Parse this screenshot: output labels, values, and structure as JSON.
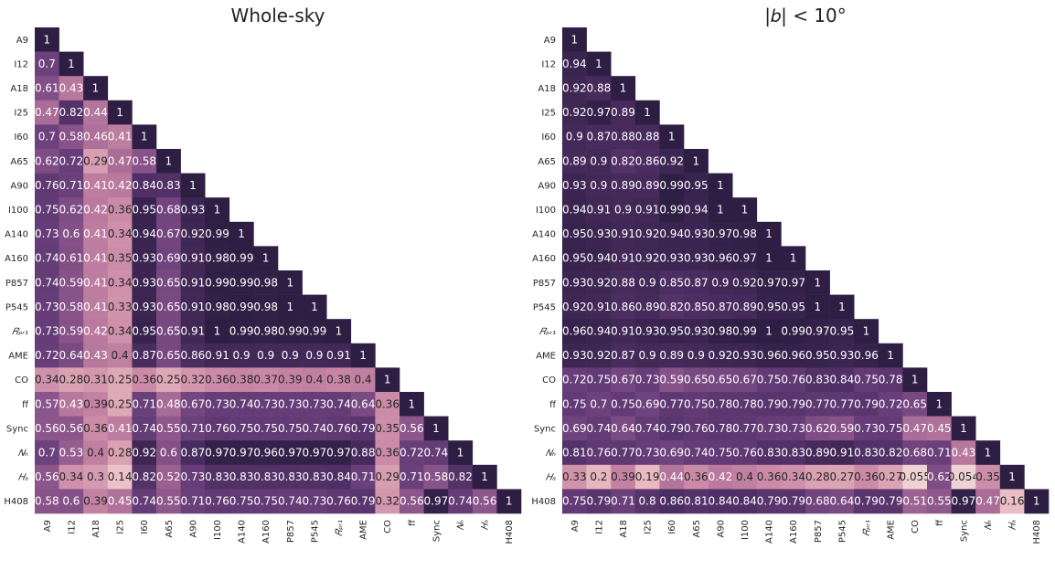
{
  "chart_data": [
    {
      "type": "heatmap",
      "title": "Whole-sky",
      "labels": [
        "A9",
        "I12",
        "A18",
        "I25",
        "I60",
        "A65",
        "A90",
        "I100",
        "A140",
        "A160",
        "P857",
        "P545",
        "R_PR1",
        "AME",
        "CO",
        "ff",
        "Sync",
        "N_H",
        "H_a",
        "H408"
      ],
      "tick_labels": [
        "A9",
        "I12",
        "A18",
        "I25",
        "I60",
        "A65",
        "A90",
        "I100",
        "A140",
        "A160",
        "P857",
        "P545",
        "𝑅ₚᵣ₁",
        "AME",
        "CO",
        "ff",
        "Sync",
        "𝑁ₕ",
        "𝐻ₐ",
        "H408"
      ],
      "triangle": "lower",
      "values": [
        [
          1
        ],
        [
          0.7,
          1
        ],
        [
          0.61,
          0.43,
          1
        ],
        [
          0.47,
          0.82,
          0.44,
          1
        ],
        [
          0.7,
          0.58,
          0.46,
          0.41,
          1
        ],
        [
          0.62,
          0.72,
          0.29,
          0.47,
          0.58,
          1
        ],
        [
          0.76,
          0.71,
          0.41,
          0.42,
          0.84,
          0.83,
          1
        ],
        [
          0.75,
          0.62,
          0.42,
          0.36,
          0.95,
          0.68,
          0.93,
          1
        ],
        [
          0.73,
          0.6,
          0.41,
          0.34,
          0.94,
          0.67,
          0.92,
          0.99,
          1
        ],
        [
          0.74,
          0.61,
          0.41,
          0.35,
          0.93,
          0.69,
          0.91,
          0.98,
          0.99,
          1
        ],
        [
          0.74,
          0.59,
          0.41,
          0.34,
          0.93,
          0.65,
          0.91,
          0.99,
          0.99,
          0.98,
          1
        ],
        [
          0.73,
          0.58,
          0.41,
          0.33,
          0.93,
          0.65,
          0.91,
          0.98,
          0.99,
          0.98,
          1,
          1
        ],
        [
          0.73,
          0.59,
          0.42,
          0.34,
          0.95,
          0.65,
          0.91,
          1,
          0.99,
          0.98,
          0.99,
          0.99,
          1
        ],
        [
          0.72,
          0.64,
          0.43,
          0.4,
          0.87,
          0.65,
          0.86,
          0.91,
          0.9,
          0.9,
          0.9,
          0.9,
          0.91,
          1
        ],
        [
          0.34,
          0.28,
          0.31,
          0.25,
          0.36,
          0.25,
          0.32,
          0.36,
          0.38,
          0.37,
          0.39,
          0.4,
          0.38,
          0.4,
          1
        ],
        [
          0.57,
          0.43,
          0.39,
          0.25,
          0.71,
          0.48,
          0.67,
          0.73,
          0.74,
          0.73,
          0.73,
          0.73,
          0.74,
          0.64,
          0.36,
          1
        ],
        [
          0.56,
          0.56,
          0.36,
          0.41,
          0.74,
          0.55,
          0.71,
          0.76,
          0.75,
          0.75,
          0.75,
          0.74,
          0.76,
          0.79,
          0.35,
          0.56,
          1
        ],
        [
          0.7,
          0.53,
          0.4,
          0.28,
          0.92,
          0.6,
          0.87,
          0.97,
          0.97,
          0.96,
          0.97,
          0.97,
          0.97,
          0.88,
          0.36,
          0.72,
          0.74,
          1
        ],
        [
          0.56,
          0.34,
          0.3,
          0.14,
          0.82,
          0.52,
          0.73,
          0.83,
          0.83,
          0.83,
          0.83,
          0.83,
          0.84,
          0.71,
          0.29,
          0.71,
          0.58,
          0.82,
          1
        ],
        [
          0.58,
          0.6,
          0.39,
          0.45,
          0.74,
          0.55,
          0.71,
          0.76,
          0.75,
          0.75,
          0.74,
          0.73,
          0.76,
          0.79,
          0.32,
          0.56,
          0.97,
          0.74,
          0.56,
          1
        ]
      ]
    },
    {
      "type": "heatmap",
      "title": "|𝑏| < 10°",
      "labels": [
        "A9",
        "I12",
        "A18",
        "I25",
        "I60",
        "A65",
        "A90",
        "I100",
        "A140",
        "A160",
        "P857",
        "P545",
        "R_PR1",
        "AME",
        "CO",
        "ff",
        "Sync",
        "N_H",
        "H_a",
        "H408"
      ],
      "tick_labels": [
        "A9",
        "I12",
        "A18",
        "I25",
        "I60",
        "A65",
        "A90",
        "I100",
        "A140",
        "A160",
        "P857",
        "P545",
        "𝑅ₚᵣ₁",
        "AME",
        "CO",
        "ff",
        "Sync",
        "𝑁ₕ",
        "𝐻ₐ",
        "H408"
      ],
      "triangle": "lower",
      "values": [
        [
          1
        ],
        [
          0.94,
          1
        ],
        [
          0.92,
          0.88,
          1
        ],
        [
          0.92,
          0.97,
          0.89,
          1
        ],
        [
          0.9,
          0.87,
          0.88,
          0.88,
          1
        ],
        [
          0.89,
          0.9,
          0.82,
          0.86,
          0.92,
          1
        ],
        [
          0.93,
          0.9,
          0.89,
          0.89,
          0.99,
          0.95,
          1
        ],
        [
          0.94,
          0.91,
          0.9,
          0.91,
          0.99,
          0.94,
          1,
          1
        ],
        [
          0.95,
          0.93,
          0.91,
          0.92,
          0.94,
          0.93,
          0.97,
          0.98,
          1
        ],
        [
          0.95,
          0.94,
          0.91,
          0.92,
          0.93,
          0.93,
          0.96,
          0.97,
          1,
          1
        ],
        [
          0.93,
          0.92,
          0.88,
          0.9,
          0.85,
          0.87,
          0.9,
          0.92,
          0.97,
          0.97,
          1
        ],
        [
          0.92,
          0.91,
          0.86,
          0.89,
          0.82,
          0.85,
          0.87,
          0.89,
          0.95,
          0.95,
          1,
          1
        ],
        [
          0.96,
          0.94,
          0.91,
          0.93,
          0.95,
          0.93,
          0.98,
          0.99,
          1,
          0.99,
          0.97,
          0.95,
          1
        ],
        [
          0.93,
          0.92,
          0.87,
          0.9,
          0.89,
          0.9,
          0.92,
          0.93,
          0.96,
          0.96,
          0.95,
          0.93,
          0.96,
          1
        ],
        [
          0.72,
          0.75,
          0.67,
          0.73,
          0.59,
          0.65,
          0.65,
          0.67,
          0.75,
          0.76,
          0.83,
          0.84,
          0.75,
          0.78,
          1
        ],
        [
          0.75,
          0.7,
          0.75,
          0.69,
          0.77,
          0.75,
          0.78,
          0.78,
          0.79,
          0.79,
          0.77,
          0.77,
          0.79,
          0.72,
          0.65,
          1
        ],
        [
          0.69,
          0.74,
          0.64,
          0.74,
          0.79,
          0.76,
          0.78,
          0.77,
          0.73,
          0.73,
          0.62,
          0.59,
          0.73,
          0.75,
          0.47,
          0.45,
          1
        ],
        [
          0.81,
          0.76,
          0.77,
          0.73,
          0.69,
          0.74,
          0.75,
          0.76,
          0.83,
          0.83,
          0.89,
          0.91,
          0.83,
          0.82,
          0.68,
          0.71,
          0.43,
          1
        ],
        [
          0.33,
          0.2,
          0.39,
          0.19,
          0.44,
          0.36,
          0.42,
          0.4,
          0.36,
          0.34,
          0.28,
          0.27,
          0.36,
          0.27,
          0.055,
          0.62,
          0.054,
          0.35,
          1
        ],
        [
          0.75,
          0.79,
          0.71,
          0.8,
          0.86,
          0.81,
          0.84,
          0.84,
          0.79,
          0.79,
          0.68,
          0.64,
          0.79,
          0.79,
          0.51,
          0.55,
          0.97,
          0.47,
          0.16,
          1
        ]
      ]
    }
  ]
}
